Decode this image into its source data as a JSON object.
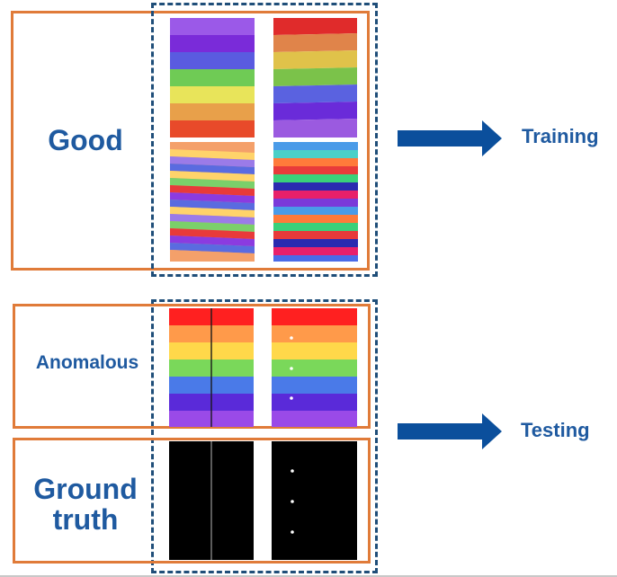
{
  "good": {
    "label": "Good"
  },
  "anomalous": {
    "label": "Anomalous"
  },
  "ground_truth": {
    "label": "Ground truth"
  },
  "training": {
    "label": "Training"
  },
  "testing": {
    "label": "Testing"
  },
  "colors": {
    "frame": "#e07b39",
    "dashed": "#1f4e79",
    "arrow": "#0b4f9c",
    "text": "#1f5aa0"
  }
}
